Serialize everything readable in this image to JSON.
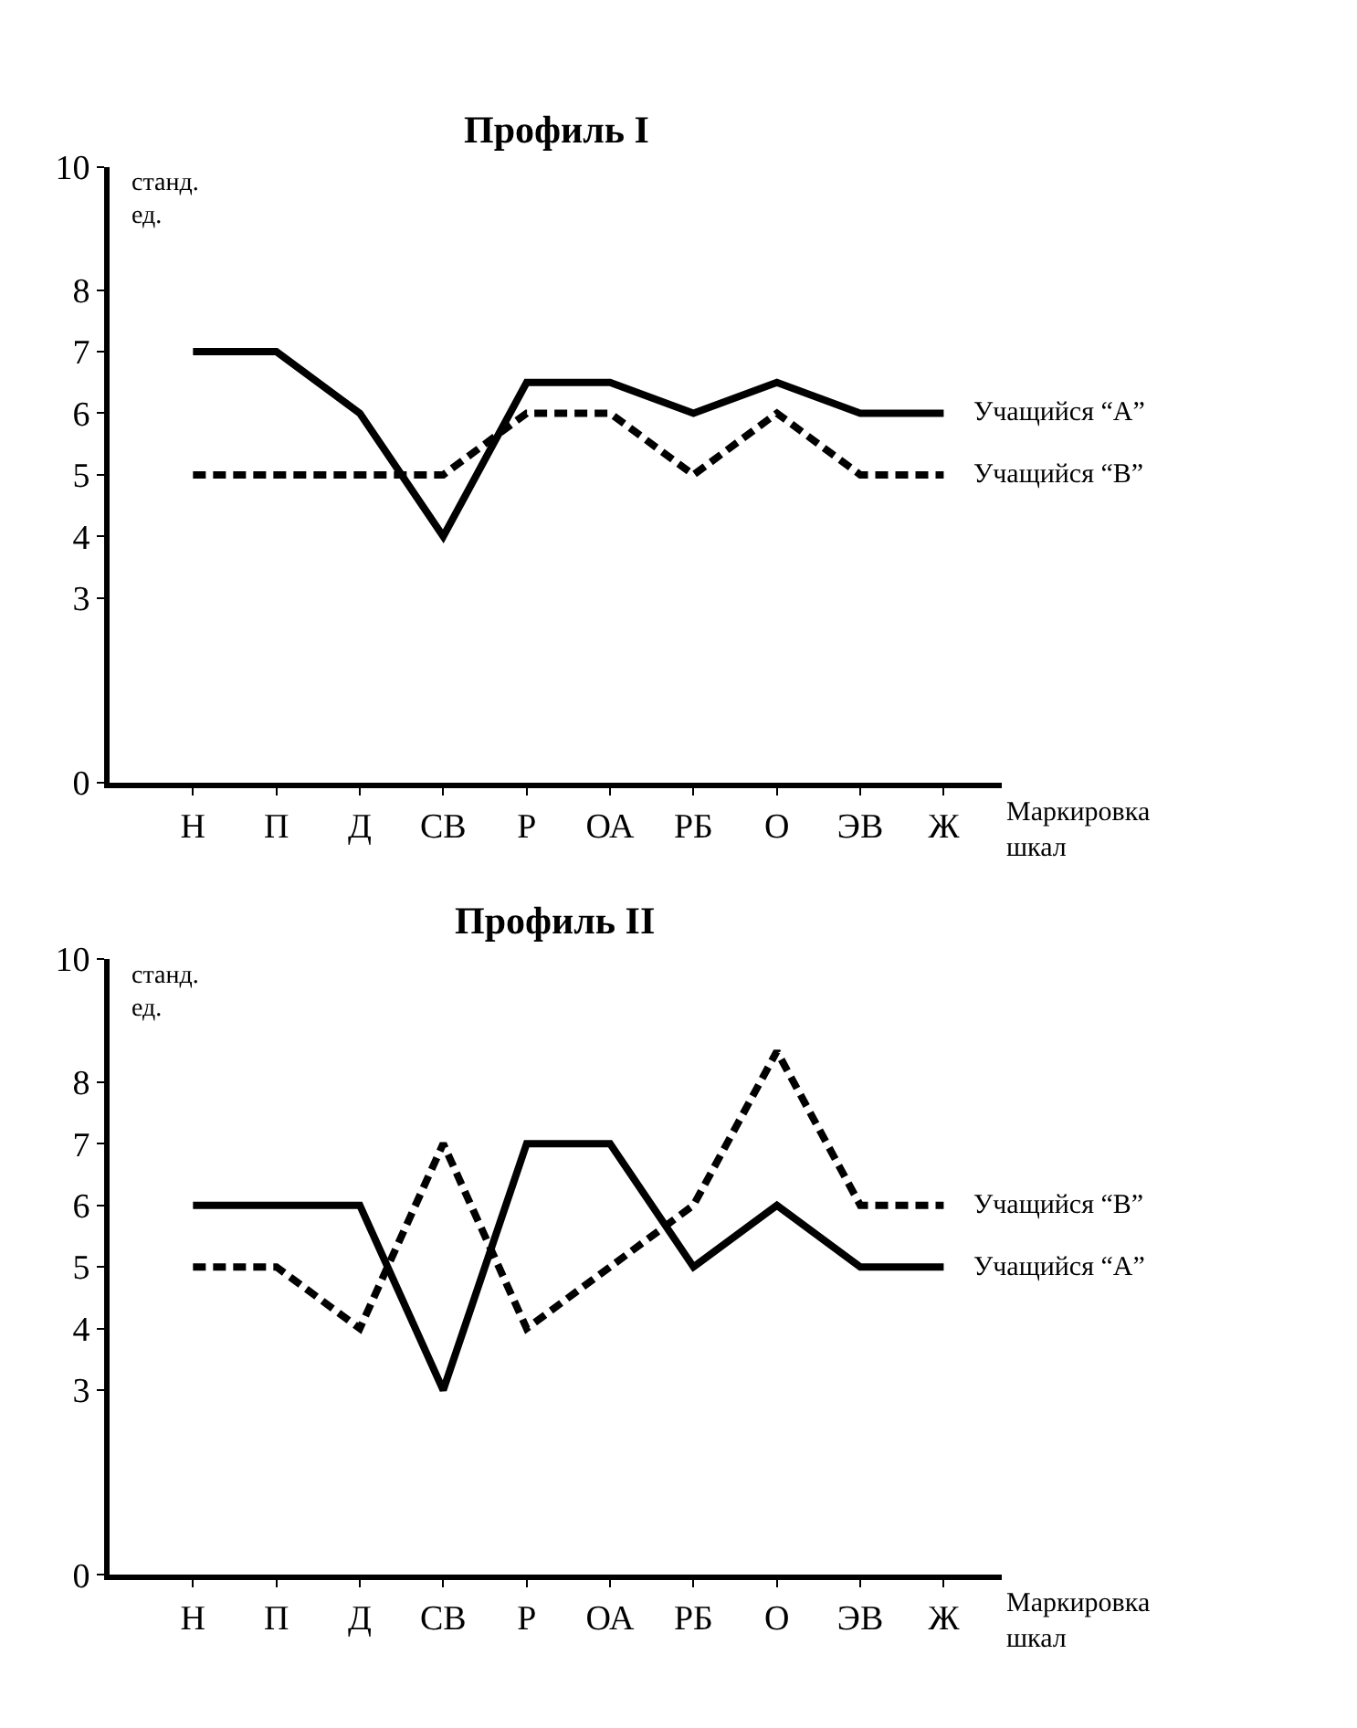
{
  "chart_data": [
    {
      "type": "line",
      "title": "Профиль I",
      "xlabel": "Маркировка шкал",
      "ylabel": "станд. ед.",
      "categories": [
        "Н",
        "П",
        "Д",
        "СВ",
        "Р",
        "ОА",
        "РБ",
        "О",
        "ЭВ",
        "Ж"
      ],
      "ylim": [
        0,
        10
      ],
      "yticks": [
        0,
        3,
        4,
        5,
        6,
        7,
        8,
        10
      ],
      "marker": "none",
      "series": [
        {
          "name": "Учащийся “A”",
          "color": "#000000",
          "line_style": "solid",
          "values": [
            7,
            7,
            6,
            4,
            6.5,
            6.5,
            6,
            6.5,
            6,
            6
          ]
        },
        {
          "name": "Учащийся “B”",
          "color": "#000000",
          "line_style": "dashed",
          "values": [
            5,
            5,
            5,
            5,
            6,
            6,
            5,
            6,
            5,
            5
          ]
        }
      ]
    },
    {
      "type": "line",
      "title": "Профиль II",
      "xlabel": "Маркировка шкал",
      "ylabel": "станд. ед.",
      "categories": [
        "Н",
        "П",
        "Д",
        "СВ",
        "Р",
        "ОА",
        "РБ",
        "О",
        "ЭВ",
        "Ж"
      ],
      "ylim": [
        0,
        10
      ],
      "yticks": [
        0,
        3,
        4,
        5,
        6,
        7,
        8,
        10
      ],
      "marker": "none",
      "series": [
        {
          "name": "Учащийся “B”",
          "color": "#000000",
          "line_style": "dashed",
          "values": [
            5,
            5,
            4,
            7,
            4,
            5,
            6,
            8.5,
            6,
            6
          ]
        },
        {
          "name": "Учащийся “A”",
          "color": "#000000",
          "line_style": "solid",
          "values": [
            6,
            6,
            6,
            3,
            7,
            7,
            5,
            6,
            5,
            5
          ]
        }
      ]
    }
  ]
}
